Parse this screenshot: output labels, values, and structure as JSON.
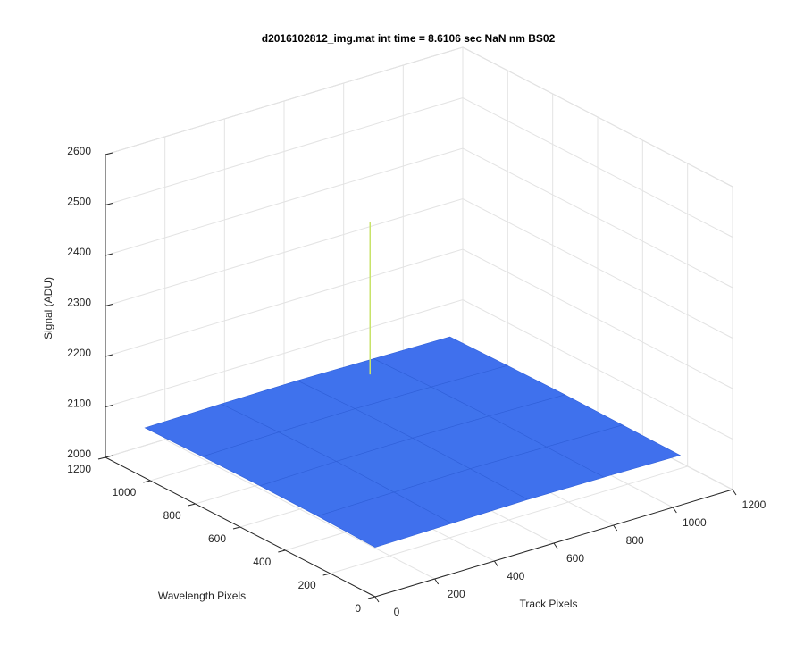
{
  "chart_data": {
    "type": "surface",
    "title": "d2016102812_img.mat int time = 8.6106 sec  NaN nm BS02",
    "xlabel": "Track Pixels",
    "ylabel": "Wavelength Pixels",
    "zlabel": "Signal (ADU)",
    "xlim": [
      0,
      1200
    ],
    "ylim": [
      0,
      1200
    ],
    "zlim": [
      2000,
      2600
    ],
    "xticks": [
      0,
      200,
      400,
      600,
      800,
      1000,
      1200
    ],
    "yticks": [
      0,
      200,
      400,
      600,
      800,
      1000,
      1200
    ],
    "zticks": [
      2000,
      2100,
      2200,
      2300,
      2400,
      2500,
      2600
    ],
    "grid": true,
    "colormap": "parula",
    "surface": {
      "x": [
        0,
        256,
        512,
        768,
        1024
      ],
      "y": [
        0,
        256,
        512,
        768,
        1024
      ],
      "z": [
        [
          2098,
          2100,
          2102,
          2101,
          2099
        ],
        [
          2101,
          2103,
          2104,
          2102,
          2100
        ],
        [
          2102,
          2105,
          2106,
          2104,
          2101
        ],
        [
          2101,
          2104,
          2105,
          2103,
          2100
        ],
        [
          2099,
          2101,
          2102,
          2100,
          2098
        ]
      ]
    },
    "spikes": [
      {
        "x": 700,
        "y": 950,
        "z": 2400
      }
    ]
  }
}
